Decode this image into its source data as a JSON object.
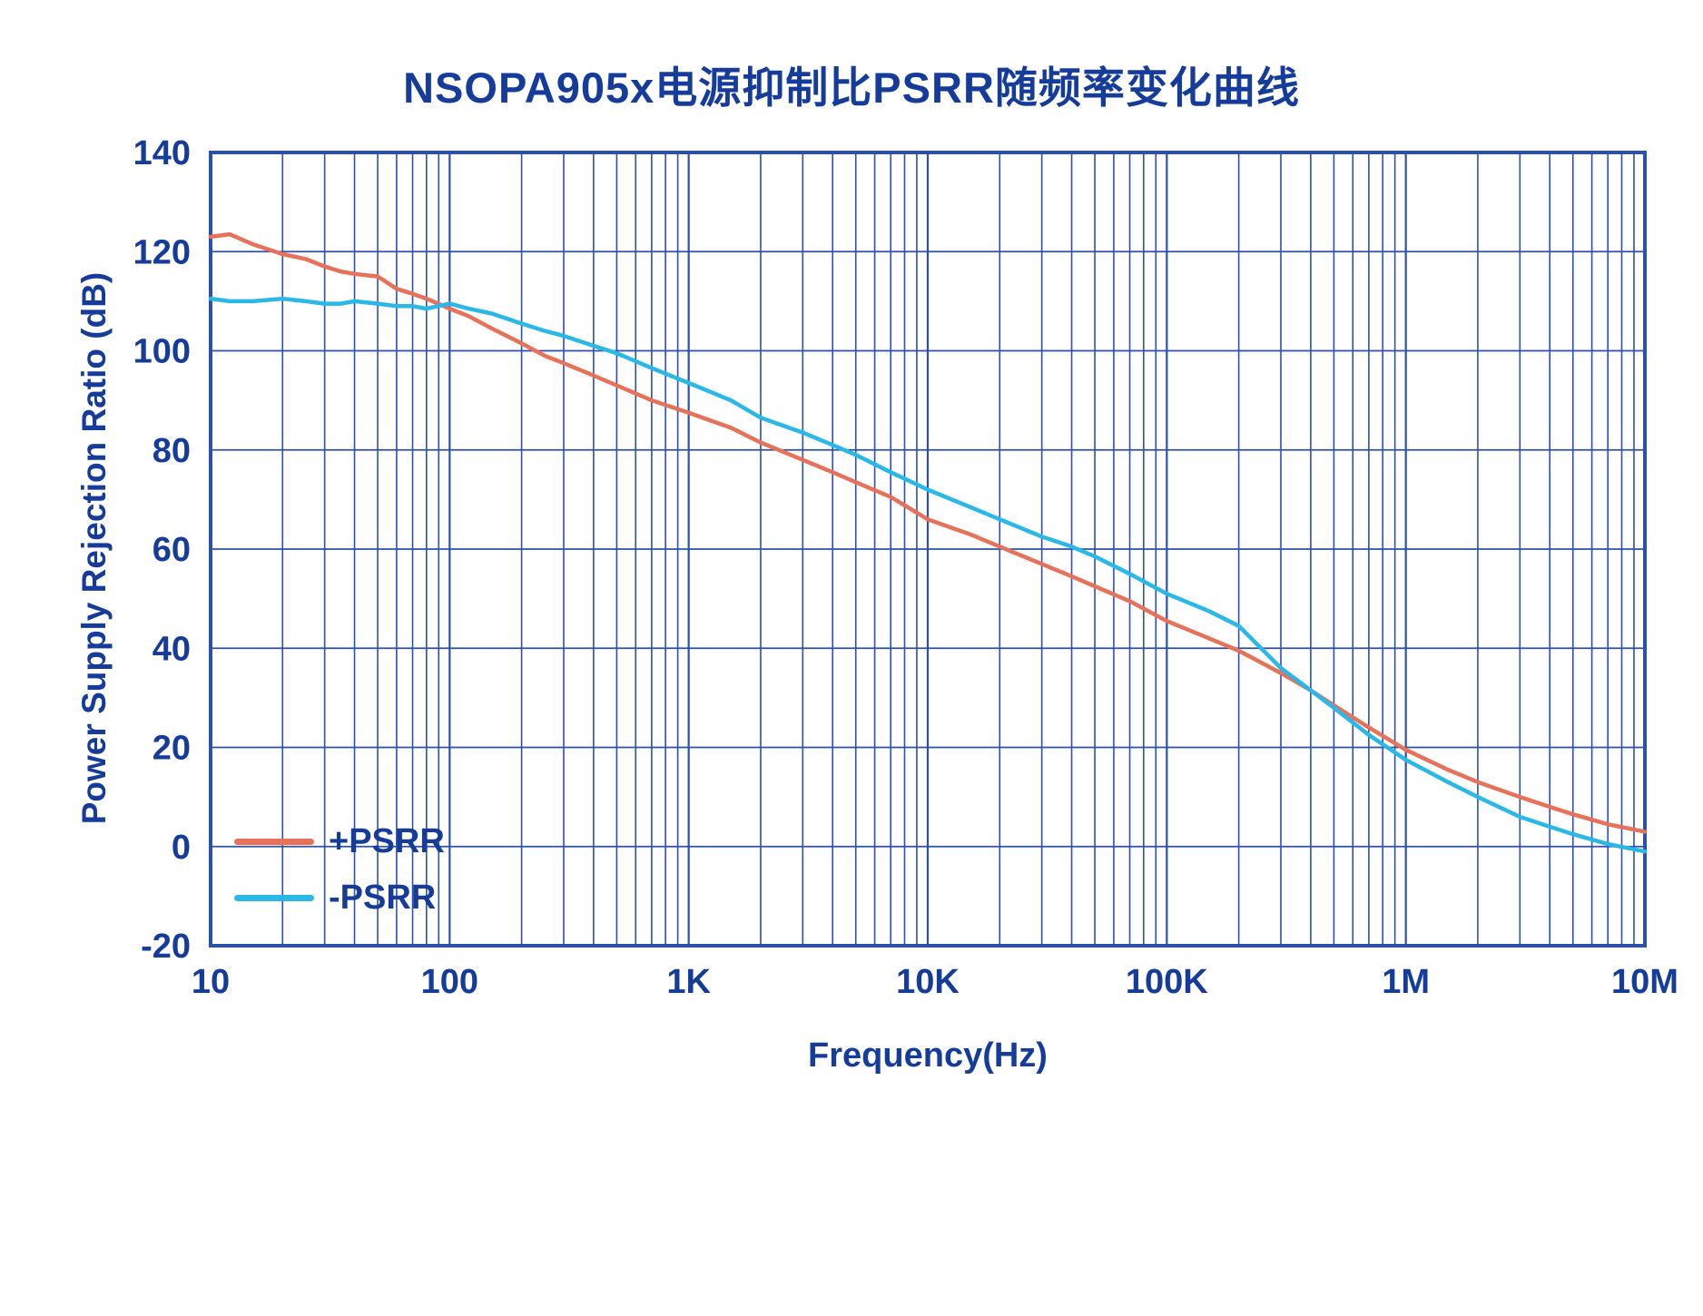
{
  "title": "NSOPA905x电源抑制比PSRR随频率变化曲线",
  "colors": {
    "title_text": "#163c9b",
    "axis_text": "#163c9b",
    "grid": "#2d50a8",
    "frame": "#2d50a8",
    "pos_psrr": "#e8715a",
    "neg_psrr": "#29b8e8",
    "background": "#ffffff"
  },
  "chart_data": {
    "type": "line",
    "title": "NSOPA905x电源抑制比PSRR随频率变化曲线",
    "xlabel": "Frequency(Hz)",
    "ylabel": "Power Supply Rejection Ratio (dB)",
    "x_scale": "log",
    "xlim": [
      10,
      10000000
    ],
    "ylim": [
      -20,
      140
    ],
    "y_ticks": [
      140,
      120,
      100,
      80,
      60,
      40,
      20,
      0,
      -20
    ],
    "x_ticks": [
      {
        "value": 10,
        "label": "10"
      },
      {
        "value": 100,
        "label": "100"
      },
      {
        "value": 1000,
        "label": "1K"
      },
      {
        "value": 10000,
        "label": "10K"
      },
      {
        "value": 100000,
        "label": "100K"
      },
      {
        "value": 1000000,
        "label": "1M"
      },
      {
        "value": 10000000,
        "label": "10M"
      }
    ],
    "grid": "log minor + major vertical, major horizontal, blue",
    "legend_position": "inside bottom-left",
    "series": [
      {
        "name": "+PSRR",
        "color": "#e8715a",
        "x": [
          10,
          12,
          15,
          20,
          25,
          30,
          35,
          40,
          50,
          60,
          70,
          80,
          100,
          120,
          150,
          200,
          250,
          300,
          400,
          500,
          700,
          1000,
          1500,
          2000,
          3000,
          4000,
          5000,
          7000,
          10000,
          15000,
          20000,
          30000,
          40000,
          50000,
          70000,
          100000,
          150000,
          200000,
          300000,
          400000,
          500000,
          700000,
          1000000,
          1500000,
          2000000,
          3000000,
          4000000,
          5000000,
          7000000,
          10000000
        ],
        "y": [
          123,
          123.5,
          121.5,
          119.5,
          118.5,
          117,
          116,
          115.5,
          115,
          112.5,
          111.5,
          110.5,
          108.5,
          107,
          104.5,
          101.5,
          99,
          97.5,
          95,
          93,
          90,
          87.5,
          84.5,
          81.5,
          78,
          75.5,
          73.5,
          70.5,
          66,
          63,
          60.5,
          57,
          54.5,
          52.5,
          49.5,
          45.5,
          42,
          39.5,
          35,
          31.5,
          28.5,
          24,
          19.5,
          15.5,
          13,
          10,
          8,
          6.5,
          4.5,
          3
        ]
      },
      {
        "name": "-PSRR",
        "color": "#29b8e8",
        "x": [
          10,
          12,
          15,
          20,
          25,
          30,
          35,
          40,
          50,
          60,
          70,
          80,
          100,
          120,
          150,
          200,
          250,
          300,
          400,
          500,
          700,
          1000,
          1500,
          2000,
          3000,
          4000,
          5000,
          7000,
          10000,
          15000,
          20000,
          30000,
          40000,
          50000,
          70000,
          100000,
          150000,
          200000,
          300000,
          400000,
          500000,
          700000,
          1000000,
          1500000,
          2000000,
          3000000,
          4000000,
          5000000,
          7000000,
          10000000
        ],
        "y": [
          110.5,
          110,
          110,
          110.5,
          110,
          109.5,
          109.5,
          110,
          109.5,
          109,
          109,
          108.5,
          109.5,
          108.5,
          107.5,
          105.5,
          104,
          103,
          101,
          99.5,
          96.5,
          93.5,
          90,
          86.5,
          83.5,
          81,
          79,
          75.5,
          72,
          68.5,
          66,
          62.5,
          60.5,
          58.5,
          55,
          51,
          47.5,
          44.5,
          36,
          31.5,
          28,
          22.5,
          17.5,
          13,
          10,
          6,
          4,
          2.5,
          0.5,
          -1
        ]
      }
    ]
  },
  "legend": {
    "items": [
      "+PSRR",
      "-PSRR"
    ]
  }
}
